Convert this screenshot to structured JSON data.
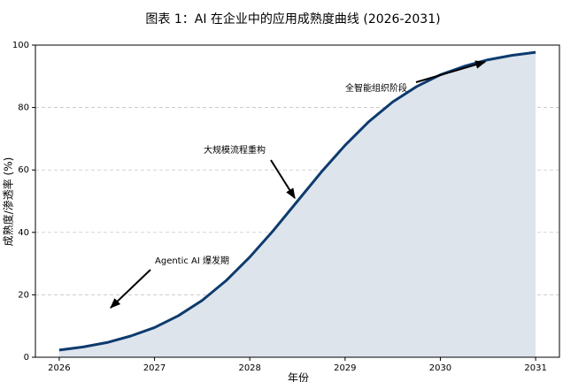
{
  "chart_data": {
    "type": "line",
    "title": "图表 1：AI 在企业中的应用成熟度曲线 (2026-2031)",
    "x_label": "年份",
    "y_label": "成熟度/渗透率 (%)",
    "x": [
      2026,
      2026.25,
      2026.5,
      2026.75,
      2027,
      2027.25,
      2027.5,
      2027.75,
      2028,
      2028.25,
      2028.5,
      2028.75,
      2029,
      2029.25,
      2029.5,
      2029.75,
      2030,
      2030.25,
      2030.5,
      2030.75,
      2031
    ],
    "series": [
      {
        "color": "#0d3b6e",
        "fill": "#dde4ec",
        "values": [
          2.3,
          3.3,
          4.7,
          6.8,
          9.5,
          13.3,
          18.2,
          24.5,
          32.1,
          40.7,
          50,
          59.3,
          67.9,
          75.5,
          81.8,
          86.7,
          90.5,
          93.2,
          95.3,
          96.7,
          97.7
        ]
      }
    ],
    "xlim": [
      2025.75,
      2031.25
    ],
    "xticks": [
      2026,
      2027,
      2028,
      2029,
      2030,
      2031
    ],
    "ylim": [
      0,
      100
    ],
    "yticks": [
      0,
      20,
      40,
      60,
      80,
      100
    ],
    "grid": true,
    "annotations": [
      {
        "text": "Agentic AI 爆发期"
      },
      {
        "text": "大规模流程重构"
      },
      {
        "text": "全智能组织阶段"
      }
    ]
  }
}
